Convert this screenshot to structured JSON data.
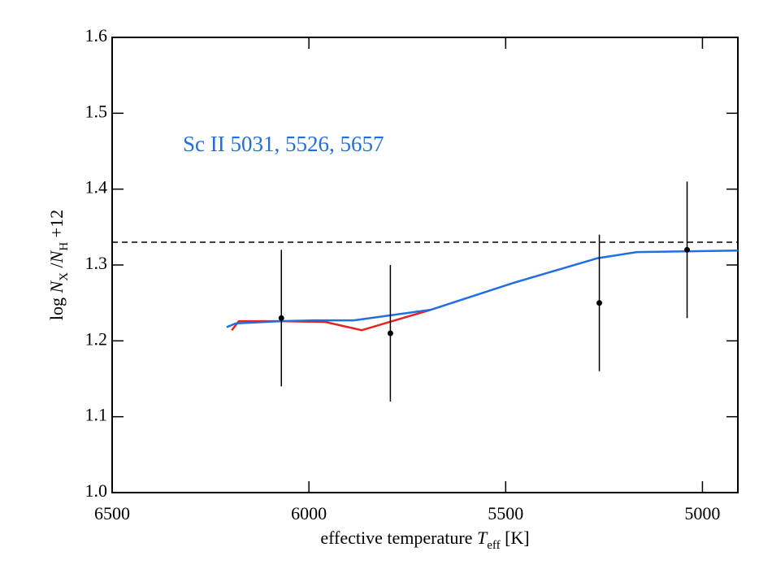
{
  "chart_data": {
    "type": "line",
    "annotation": "Sc II 5031, 5526, 5657",
    "xlabel": {
      "parts": [
        "effective temperature ",
        "T",
        "eff",
        "  [K]"
      ]
    },
    "ylabel": {
      "parts": [
        "log ",
        "N",
        "X",
        " /",
        "N",
        "H",
        " +12"
      ]
    },
    "xlim": [
      6500,
      4910
    ],
    "ylim": [
      1.0,
      1.6
    ],
    "xticks": [
      6500,
      6000,
      5500,
      5000
    ],
    "yticks": [
      {
        "value": 1.0,
        "label": "1.0"
      },
      {
        "value": 1.1,
        "label": "1.1"
      },
      {
        "value": 1.2,
        "label": "1.2"
      },
      {
        "value": 1.3,
        "label": "1.3"
      },
      {
        "value": 1.4,
        "label": "1.4"
      },
      {
        "value": 1.5,
        "label": "1.5"
      },
      {
        "value": 1.6,
        "label": "1.6"
      }
    ],
    "reference_line": {
      "value": 1.33,
      "color": "#000000"
    },
    "series": [
      {
        "color": "#e8231f",
        "x": [
          6196,
          6178,
          6072,
          5959,
          5866,
          5690
        ],
        "values": [
          1.214,
          1.226,
          1.226,
          1.225,
          1.214,
          1.241
        ]
      },
      {
        "color": "#1f6fe0",
        "x": [
          6209,
          6186,
          6072,
          5990,
          5886,
          5690,
          5483,
          5266,
          5167,
          4909
        ],
        "values": [
          1.218,
          1.223,
          1.226,
          1.227,
          1.227,
          1.241,
          1.276,
          1.309,
          1.317,
          1.319
        ]
      }
    ],
    "points": {
      "color": "#000000",
      "x": [
        6070,
        5793,
        5262,
        5039
      ],
      "values": [
        1.23,
        1.21,
        1.25,
        1.32
      ],
      "errors": [
        0.09,
        0.09,
        0.09,
        0.09
      ]
    }
  }
}
